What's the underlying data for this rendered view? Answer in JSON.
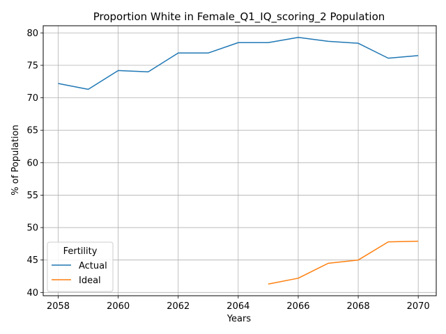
{
  "chart_data": {
    "type": "line",
    "title": "Proportion White in Female_Q1_IQ_scoring_2 Population",
    "xlabel": "Years",
    "ylabel": "% of Population",
    "xlim": [
      2057.5,
      2070.6
    ],
    "ylim": [
      39.5,
      81.1
    ],
    "xticks": [
      2058,
      2060,
      2062,
      2064,
      2066,
      2068,
      2070
    ],
    "yticks": [
      40,
      45,
      50,
      55,
      60,
      65,
      70,
      75,
      80
    ],
    "grid": true,
    "legend": {
      "title": "Fertility",
      "placement": "lower-left"
    },
    "series": [
      {
        "name": "Actual",
        "color": "#1f77b4",
        "x": [
          2058,
          2059,
          2060,
          2061,
          2062,
          2063,
          2064,
          2065,
          2066,
          2067,
          2068,
          2069,
          2070
        ],
        "y": [
          72.2,
          71.3,
          74.2,
          74.0,
          76.9,
          76.9,
          78.5,
          78.5,
          79.3,
          78.7,
          78.4,
          76.1,
          76.5
        ]
      },
      {
        "name": "Ideal",
        "color": "#ff7f0e",
        "x": [
          2065,
          2066,
          2067,
          2068,
          2069,
          2070
        ],
        "y": [
          41.3,
          42.2,
          44.5,
          45.0,
          47.8,
          47.9
        ]
      }
    ]
  }
}
